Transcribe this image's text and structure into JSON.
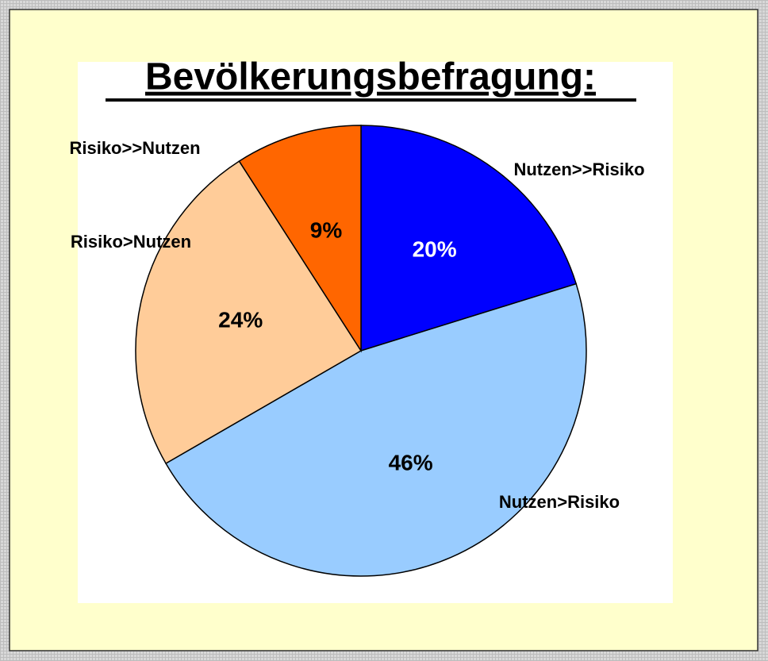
{
  "chart_data": {
    "type": "pie",
    "title": "Bevölkerungsbefragung:",
    "categories": [
      "Nutzen>>Risiko",
      "Nutzen>Risiko",
      "Risiko>Nutzen",
      "Risiko>>Nutzen"
    ],
    "values": [
      20,
      46,
      24,
      9
    ],
    "value_labels": [
      "20%",
      "46%",
      "24%",
      "9%"
    ],
    "colors": [
      "#0000ff",
      "#99ccff",
      "#ffcc99",
      "#ff6600"
    ],
    "value_label_colors": [
      "#ffffff",
      "#000000",
      "#000000",
      "#000000"
    ]
  }
}
